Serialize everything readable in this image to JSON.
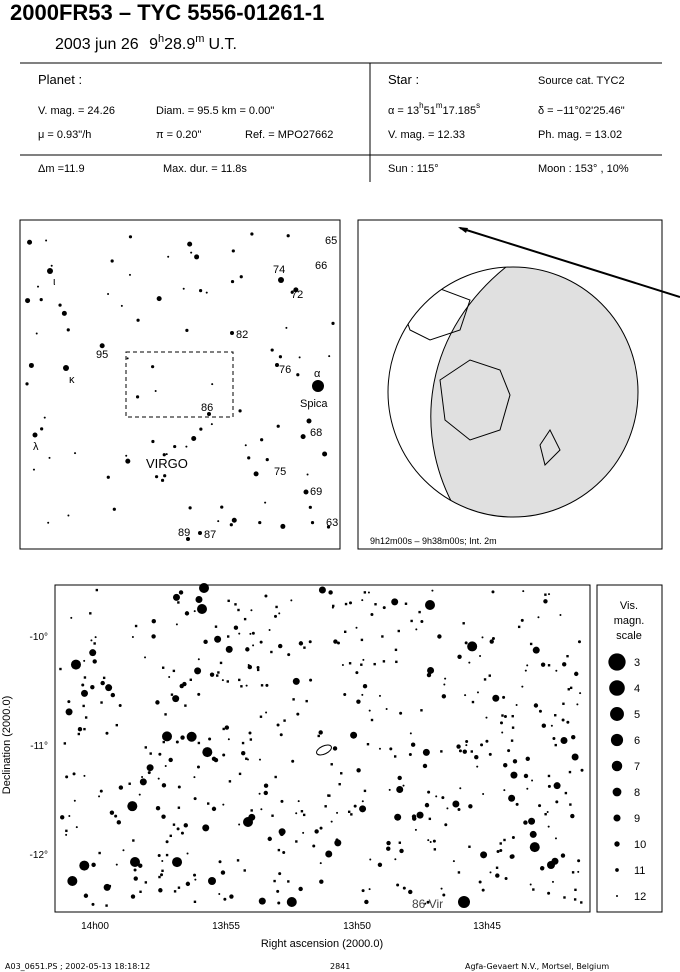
{
  "header": {
    "title": "2000FR53  –  TYC 5556-01261-1",
    "date": [
      "2003 jun 26",
      "9",
      "h",
      "28.9",
      "m",
      "U.T."
    ]
  },
  "info": {
    "planet": {
      "label": "Planet :",
      "vmag": "V. mag. = 24.26",
      "diam": "Diam. = 95.5 km = 0.00\"",
      "mu": "μ =  0.93\"/h",
      "pi": "π =  0.20\"",
      "ref": "Ref. = MPO27662"
    },
    "star": {
      "label": "Star :",
      "source": "Source cat.  TYC2",
      "alpha": [
        "α = 13",
        "h",
        "51",
        "m",
        "17.185",
        "s"
      ],
      "delta": "δ = −11°02'25.46\"",
      "vmag": "V. mag. = 12.33",
      "phmag": "Ph. mag. = 13.02"
    },
    "bottom": {
      "dm": "Δm =11.9",
      "maxdur": "Max. dur. = 11.8s",
      "sun": "Sun : 115°",
      "moon": "Moon : 153° , 10%"
    }
  },
  "finder": {
    "labels": [
      "65",
      "66",
      "74",
      "72",
      "82",
      "95",
      "κ",
      "76",
      "α",
      "Spica",
      "86",
      "68",
      "λ",
      "VIRGO",
      "75",
      "69",
      "89",
      "87",
      "63",
      "ι"
    ]
  },
  "globe": {
    "caption": "9h12m00s –  9h38m00s; Int.  2m"
  },
  "starchart": {
    "yticks": [
      "-10°",
      "-11°",
      "-12°"
    ],
    "xticks": [
      "14h00",
      "13h55",
      "13h50",
      "13h45"
    ],
    "ylabel": "Declination (2000.0)",
    "xlabel": "Right ascension (2000.0)",
    "annotation": "86 Vir",
    "scale": {
      "title": [
        "Vis.",
        "magn.",
        "scale"
      ],
      "magnitudes": [
        3,
        4,
        5,
        6,
        7,
        8,
        9,
        10,
        11,
        12
      ]
    }
  },
  "footer": {
    "file": "A03_0651.PS ; 2002-05-13 18:18:12",
    "number": "2841",
    "printer": "Agfa-Gevaert N.V., Mortsel, Belgium"
  }
}
